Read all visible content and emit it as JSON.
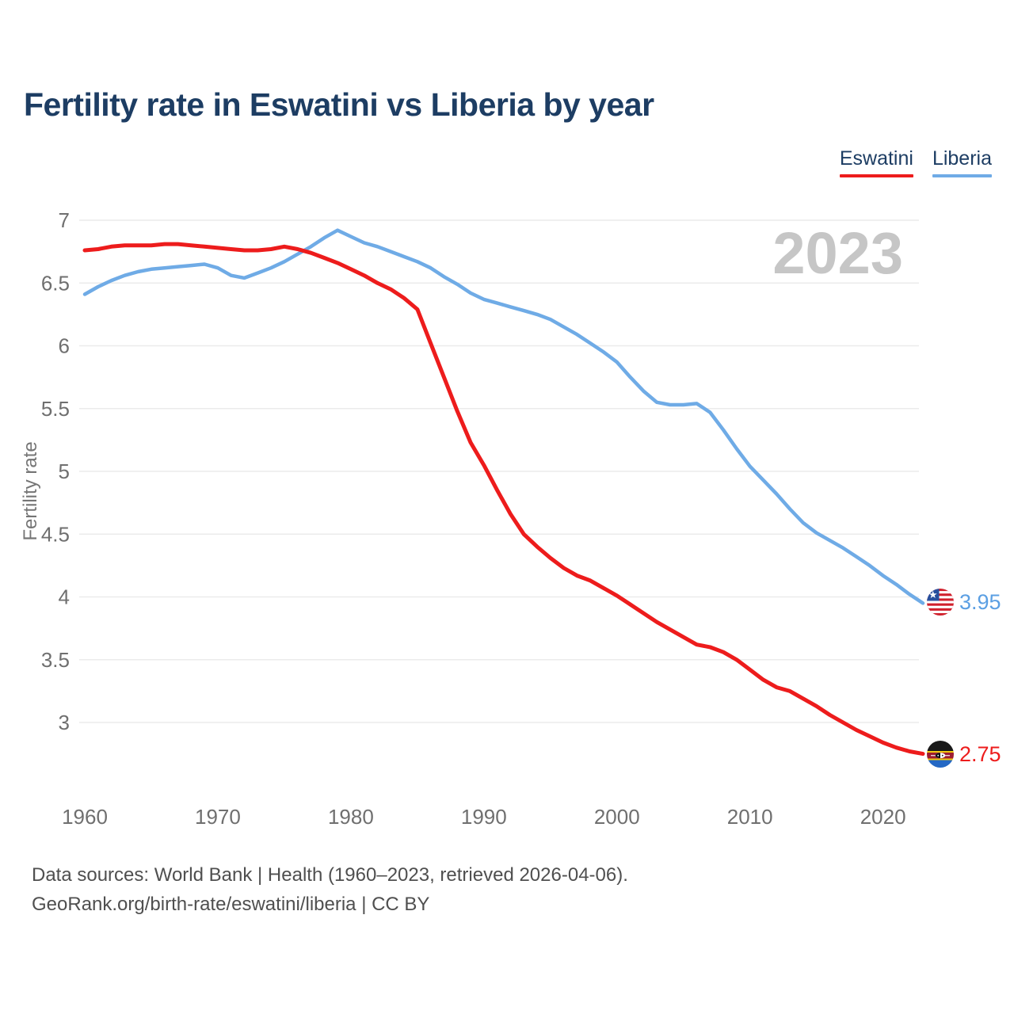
{
  "header": {
    "title": "Fertility rate in Eswatini vs Liberia by year"
  },
  "legend": [
    {
      "label": "Eswatini",
      "color": "#ed1c1c"
    },
    {
      "label": "Liberia",
      "color": "#6fabe6"
    }
  ],
  "watermark": "2023",
  "end_labels": {
    "liberia": {
      "value": "3.95",
      "color": "#5b9fe3",
      "flag": "liberia-flag-icon"
    },
    "eswatini": {
      "value": "2.75",
      "color": "#ed1c1c",
      "flag": "eswatini-flag-icon"
    }
  },
  "footer": {
    "line1": "Data sources: World Bank | Health (1960–2023, retrieved 2026-04-06).",
    "line2": "GeoRank.org/birth-rate/eswatini/liberia | CC BY"
  },
  "chart_data": {
    "type": "line",
    "title": "Fertility rate in Eswatini vs Liberia by year",
    "xlabel": "",
    "ylabel": "Fertility rate",
    "grid": "horizontal",
    "legend_position": "top-right",
    "x_ticks": [
      1960,
      1970,
      1980,
      1990,
      2000,
      2010,
      2020
    ],
    "y_ticks": [
      7,
      6.5,
      6,
      5.5,
      5,
      4.5,
      4,
      3.5,
      3
    ],
    "xlim": [
      1960,
      2023
    ],
    "ylim": [
      3,
      7
    ],
    "x": [
      1960,
      1961,
      1962,
      1963,
      1964,
      1965,
      1966,
      1967,
      1968,
      1969,
      1970,
      1971,
      1972,
      1973,
      1974,
      1975,
      1976,
      1977,
      1978,
      1979,
      1980,
      1981,
      1982,
      1983,
      1984,
      1985,
      1986,
      1987,
      1988,
      1989,
      1990,
      1991,
      1992,
      1993,
      1994,
      1995,
      1996,
      1997,
      1998,
      1999,
      2000,
      2001,
      2002,
      2003,
      2004,
      2005,
      2006,
      2007,
      2008,
      2009,
      2010,
      2011,
      2012,
      2013,
      2014,
      2015,
      2016,
      2017,
      2018,
      2019,
      2020,
      2021,
      2022,
      2023
    ],
    "series": [
      {
        "name": "Liberia",
        "color": "#6fabe6",
        "values": [
          6.41,
          6.47,
          6.52,
          6.56,
          6.59,
          6.61,
          6.62,
          6.63,
          6.64,
          6.65,
          6.62,
          6.56,
          6.54,
          6.58,
          6.62,
          6.67,
          6.73,
          6.79,
          6.86,
          6.92,
          6.87,
          6.82,
          6.79,
          6.75,
          6.71,
          6.67,
          6.62,
          6.55,
          6.49,
          6.42,
          6.37,
          6.34,
          6.31,
          6.28,
          6.25,
          6.21,
          6.15,
          6.09,
          6.02,
          5.95,
          5.87,
          5.75,
          5.64,
          5.55,
          5.53,
          5.53,
          5.54,
          5.47,
          5.33,
          5.18,
          5.04,
          4.93,
          4.82,
          4.7,
          4.59,
          4.51,
          4.45,
          4.39,
          4.32,
          4.25,
          4.17,
          4.1,
          4.02,
          3.95
        ]
      },
      {
        "name": "Eswatini",
        "color": "#ed1c1c",
        "values": [
          6.76,
          6.77,
          6.79,
          6.8,
          6.8,
          6.8,
          6.81,
          6.81,
          6.8,
          6.79,
          6.78,
          6.77,
          6.76,
          6.76,
          6.77,
          6.79,
          6.77,
          6.74,
          6.7,
          6.66,
          6.61,
          6.56,
          6.5,
          6.45,
          6.38,
          6.29,
          6.02,
          5.75,
          5.48,
          5.23,
          5.05,
          4.85,
          4.66,
          4.5,
          4.4,
          4.31,
          4.23,
          4.17,
          4.13,
          4.07,
          4.01,
          3.94,
          3.87,
          3.8,
          3.74,
          3.68,
          3.62,
          3.6,
          3.56,
          3.5,
          3.42,
          3.34,
          3.28,
          3.25,
          3.19,
          3.13,
          3.06,
          3.0,
          2.94,
          2.89,
          2.84,
          2.8,
          2.77,
          2.75
        ]
      }
    ],
    "final_values": {
      "Liberia": 3.95,
      "Eswatini": 2.75
    }
  }
}
